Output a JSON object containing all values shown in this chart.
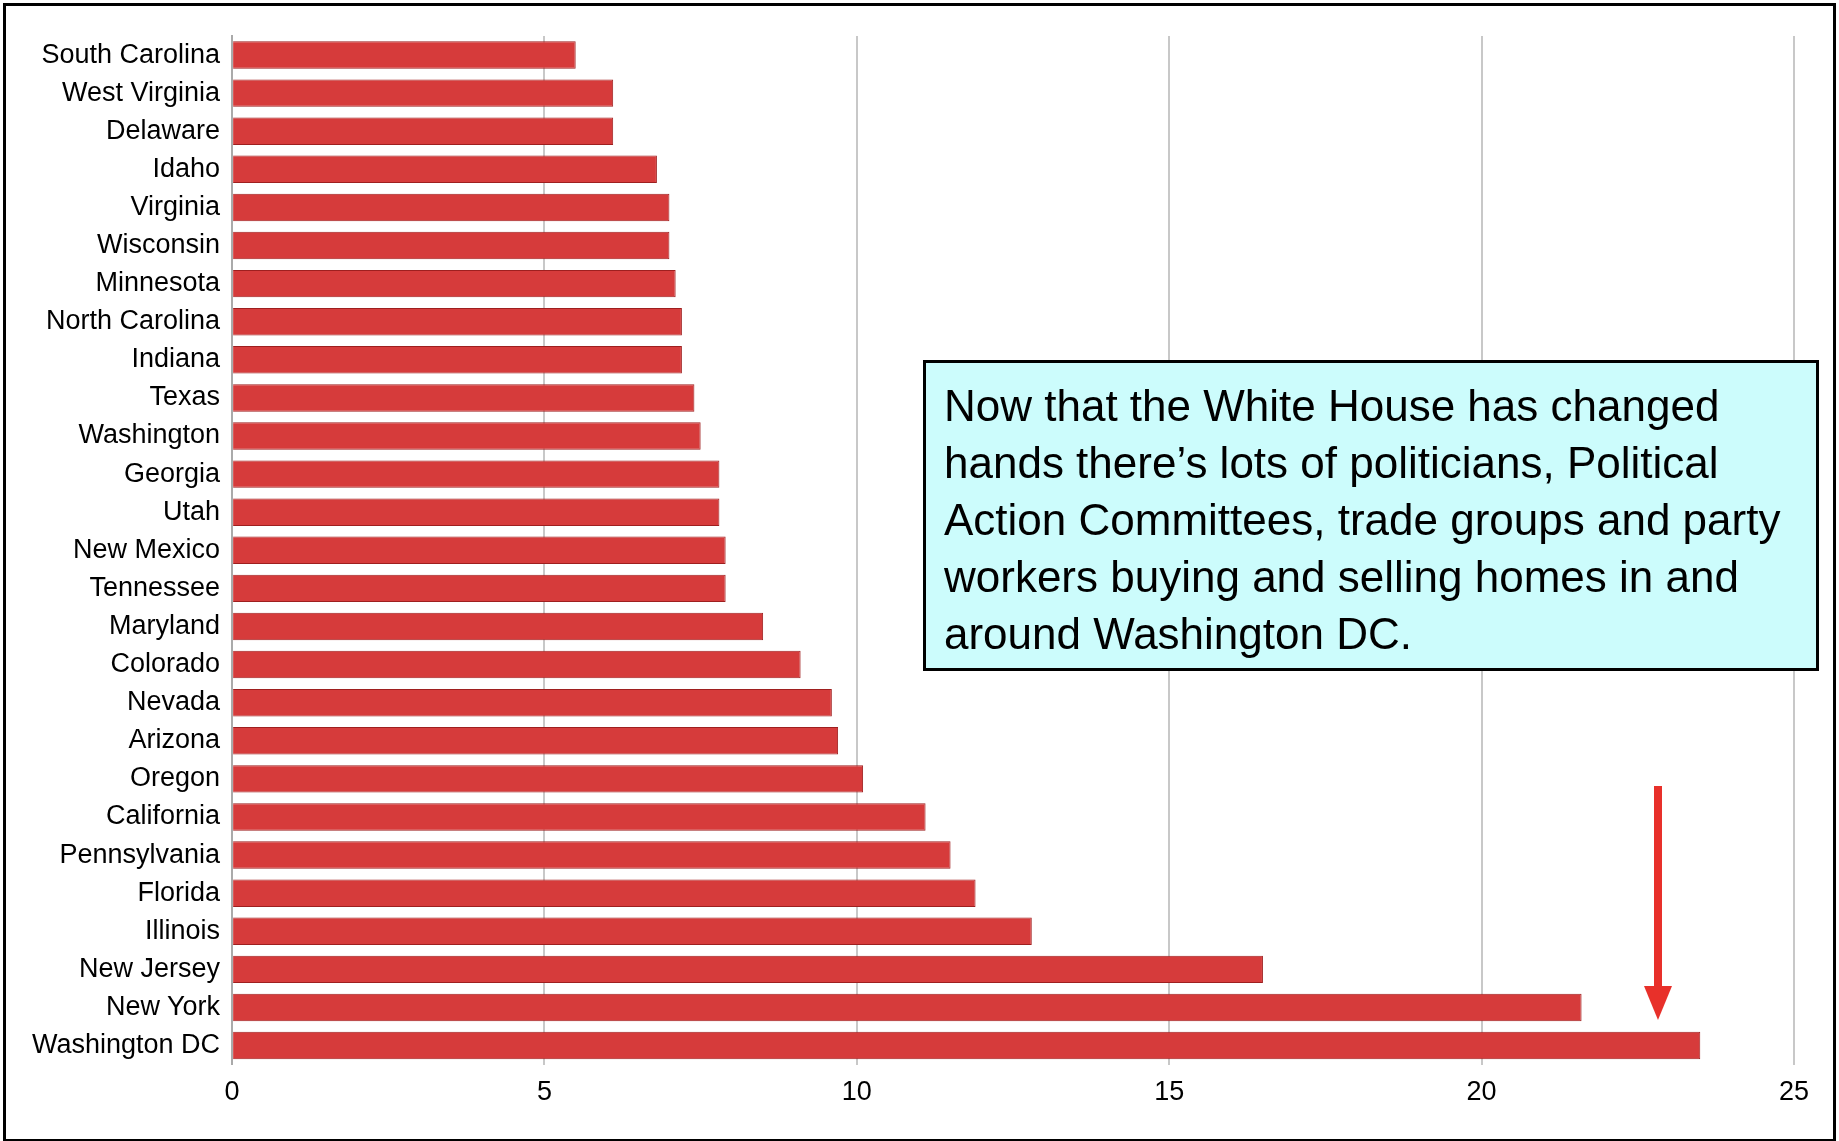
{
  "chart_data": {
    "type": "bar",
    "orientation": "horizontal",
    "categories": [
      "South Carolina",
      "West Virginia",
      "Delaware",
      "Idaho",
      "Virginia",
      "Wisconsin",
      "Minnesota",
      "North Carolina",
      "Indiana",
      "Texas",
      "Washington",
      "Georgia",
      "Utah",
      "New Mexico",
      "Tennessee",
      "Maryland",
      "Colorado",
      "Nevada",
      "Arizona",
      "Oregon",
      "California",
      "Pennsylvania",
      "Florida",
      "Illinois",
      "New Jersey",
      "New York",
      "Washington DC"
    ],
    "values": [
      5.5,
      6.1,
      6.1,
      6.8,
      7.0,
      7.0,
      7.1,
      7.2,
      7.2,
      7.4,
      7.5,
      7.8,
      7.8,
      7.9,
      7.9,
      8.5,
      9.1,
      9.6,
      9.7,
      10.1,
      11.1,
      11.5,
      11.9,
      12.8,
      16.5,
      21.6,
      23.5
    ],
    "color": "#d63b3b",
    "xlim": [
      0,
      25
    ],
    "xticks": [
      0,
      5,
      10,
      15,
      20,
      25
    ],
    "grid": "x",
    "legend": false,
    "annotations": [
      "Now that the White House has changed hands there’s lots of politicians, Political Action Committees, trade groups and party workers buying and selling homes in and around Washington DC."
    ]
  }
}
